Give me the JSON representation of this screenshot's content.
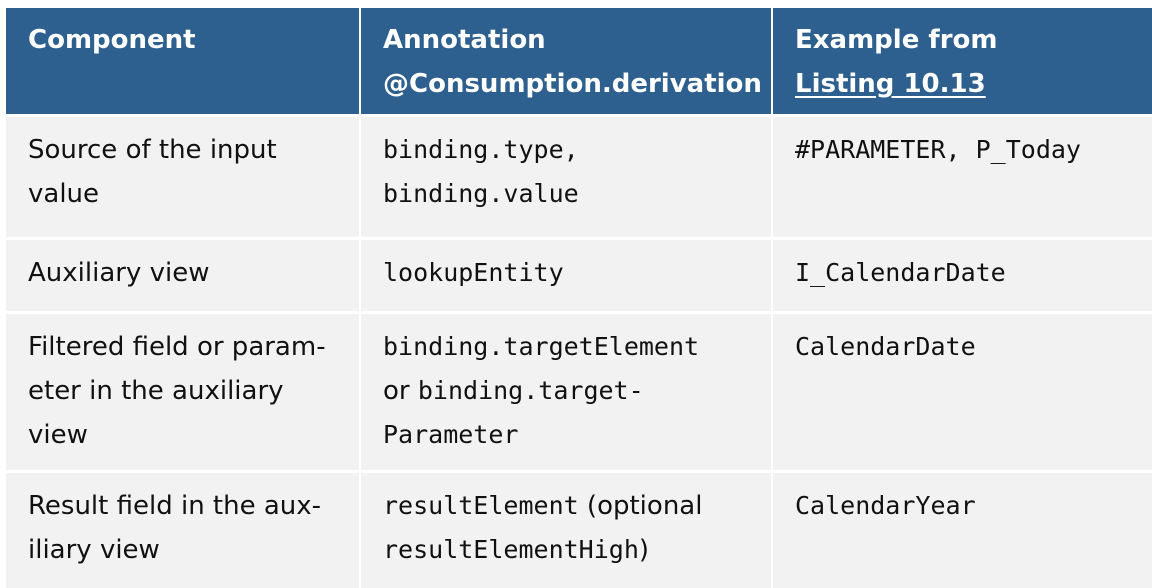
{
  "header": {
    "component": "Component",
    "annotation_l1": "Annotation",
    "annotation_l2": "@Consumption.derivation",
    "example_l1": "Example from",
    "example_l2": "Listing 10.13"
  },
  "rows": [
    {
      "component": [
        "Source of the input",
        "value"
      ],
      "annotation": {
        "l1": "binding.type,",
        "l2": "binding.value"
      },
      "example": "#PARAMETER, P_Today"
    },
    {
      "component": [
        "Auxiliary view"
      ],
      "annotation": {
        "l1": "lookupEntity"
      },
      "example": "I_CalendarDate"
    },
    {
      "component": [
        "Filtered field or param-",
        "eter in the auxiliary",
        "view"
      ],
      "annotation": {
        "l1": "binding.targetElement",
        "l2_text": "or ",
        "l2_code": "binding.target-",
        "l3": "Parameter"
      },
      "example": "CalendarDate"
    },
    {
      "component": [
        "Result field in the aux-",
        "iliary view"
      ],
      "annotation": {
        "l1_code": "resultElement",
        "l1_text": " (optional",
        "l2_code": "resultElementHigh",
        "l2_text": ")"
      },
      "example": "CalendarYear"
    }
  ]
}
